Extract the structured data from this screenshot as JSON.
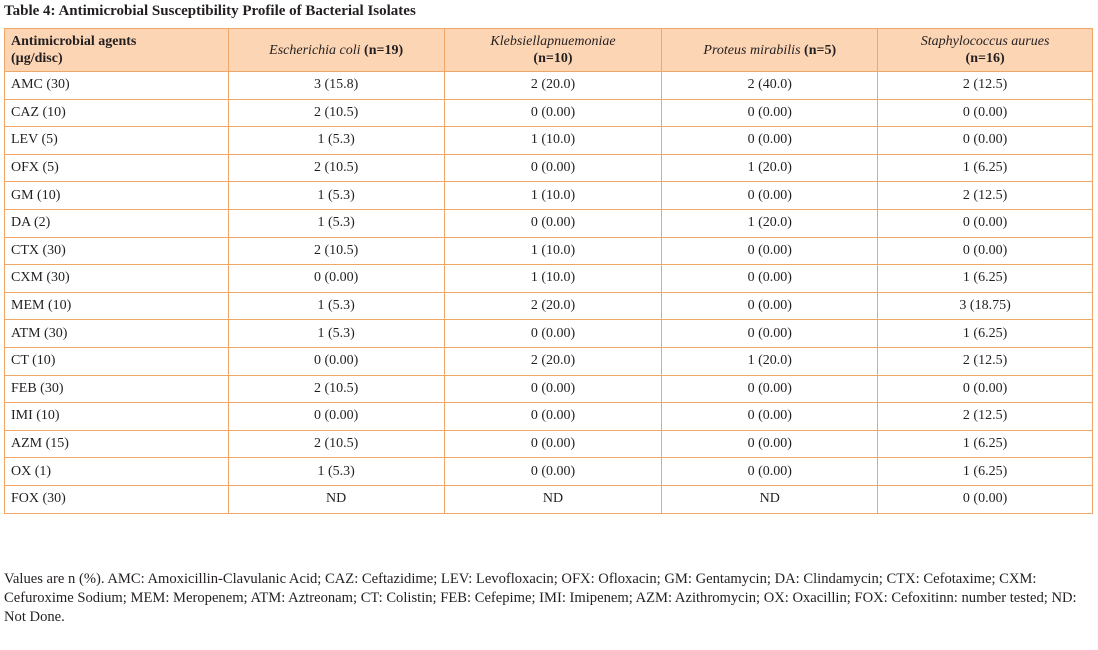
{
  "title": "Table 4: Antimicrobial Susceptibility Profile of Bacterial Isolates",
  "header": {
    "agents_line1": "Antimicrobial agents",
    "agents_line2": "(µg/disc)",
    "cols": [
      {
        "organism": "Escherichia coli",
        "n": "(n=19)"
      },
      {
        "organism": "Klebsiellapnuemoniae",
        "n": "(n=10)"
      },
      {
        "organism": "Proteus mirabilis",
        "n": "(n=5)"
      },
      {
        "organism": "Staphylococcus aurues",
        "n": "(n=16)"
      }
    ]
  },
  "rows": [
    {
      "agent": "AMC (30)",
      "v": [
        "3 (15.8)",
        "2 (20.0)",
        "2 (40.0)",
        "2 (12.5)"
      ]
    },
    {
      "agent": "CAZ (10)",
      "v": [
        "2 (10.5)",
        "0 (0.00)",
        "0 (0.00)",
        "0 (0.00)"
      ]
    },
    {
      "agent": "LEV (5)",
      "v": [
        "1 (5.3)",
        "1 (10.0)",
        "0 (0.00)",
        "0 (0.00)"
      ]
    },
    {
      "agent": "OFX (5)",
      "v": [
        "2 (10.5)",
        "0 (0.00)",
        "1 (20.0)",
        "1 (6.25)"
      ]
    },
    {
      "agent": "GM (10)",
      "v": [
        "1 (5.3)",
        "1 (10.0)",
        "0 (0.00)",
        "2 (12.5)"
      ]
    },
    {
      "agent": "DA (2)",
      "v": [
        "1 (5.3)",
        "0 (0.00)",
        "1 (20.0)",
        "0 (0.00)"
      ]
    },
    {
      "agent": "CTX (30)",
      "v": [
        "2 (10.5)",
        "1 (10.0)",
        "0 (0.00)",
        "0 (0.00)"
      ]
    },
    {
      "agent": "CXM (30)",
      "v": [
        "0 (0.00)",
        "1 (10.0)",
        "0 (0.00)",
        "1 (6.25)"
      ]
    },
    {
      "agent": "MEM (10)",
      "v": [
        "1 (5.3)",
        "2 (20.0)",
        "0 (0.00)",
        "3 (18.75)"
      ]
    },
    {
      "agent": "ATM (30)",
      "v": [
        "1 (5.3)",
        "0 (0.00)",
        "0 (0.00)",
        "1 (6.25)"
      ]
    },
    {
      "agent": "CT (10)",
      "v": [
        "0 (0.00)",
        "2 (20.0)",
        "1 (20.0)",
        "2 (12.5)"
      ]
    },
    {
      "agent": "FEB (30)",
      "v": [
        "2 (10.5)",
        "0 (0.00)",
        "0 (0.00)",
        "0 (0.00)"
      ]
    },
    {
      "agent": "IMI (10)",
      "v": [
        "0 (0.00)",
        "0 (0.00)",
        "0 (0.00)",
        "2 (12.5)"
      ]
    },
    {
      "agent": "AZM (15)",
      "v": [
        "2 (10.5)",
        "0 (0.00)",
        "0 (0.00)",
        "1 (6.25)"
      ]
    },
    {
      "agent": "OX (1)",
      "v": [
        "1 (5.3)",
        "0 (0.00)",
        "0 (0.00)",
        "1 (6.25)"
      ]
    },
    {
      "agent": "FOX (30)",
      "v": [
        "ND",
        "ND",
        "ND",
        "0 (0.00)"
      ]
    }
  ],
  "footnote": "Values are n (%). AMC: Amoxicillin-Clavulanic Acid; CAZ: Ceftazidime; LEV: Levofloxacin; OFX: Ofloxacin; GM: Gentamycin; DA: Clindamycin; CTX: Cefotaxime; CXM: Cefuroxime Sodium; MEM: Meropenem; ATM: Aztreonam; CT: Colistin; FEB: Cefepime; IMI: Imipenem; AZM: Azithromycin; OX: Oxacillin; FOX: Cefoxitinn: number tested; ND: Not Done."
}
